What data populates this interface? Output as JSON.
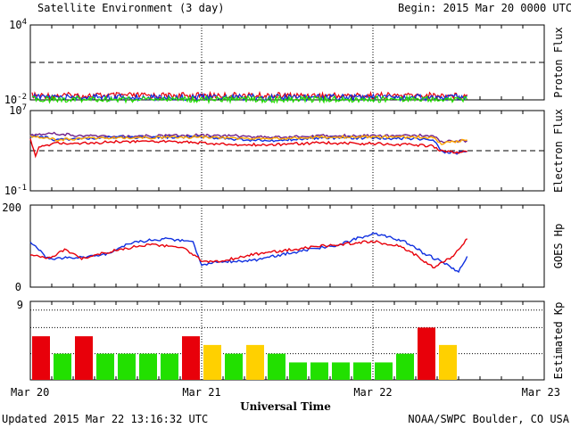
{
  "header": {
    "title": "Satellite Environment (3 day)",
    "begin": "Begin:  2015 Mar 20 0000 UTC"
  },
  "footer": {
    "updated": "Updated 2015 Mar 22 13:16:32 UTC",
    "credit": "NOAA/SWPC Boulder, CO USA"
  },
  "xaxis": {
    "label": "Universal Time",
    "ticks": [
      "Mar 20",
      "Mar 21",
      "Mar 22",
      "Mar 23"
    ],
    "domain_days": [
      0,
      3
    ],
    "data_end_day": 2.55
  },
  "colors": {
    "red": "#e8000a",
    "blue": "#1030e0",
    "green": "#22e000",
    "orange": "#ffa500",
    "purple": "#70208a",
    "yellow": "#ffd000"
  },
  "chart_data": [
    {
      "type": "line",
      "panel": "proton",
      "ylabel": "Proton Flux",
      "yscale": "log",
      "ylim": [
        0.01,
        10000
      ],
      "ytick_labels": [
        {
          "base": "10",
          "exp": "4"
        },
        {
          "base": "10",
          "exp": "-2"
        }
      ],
      "threshold": 10,
      "series": [
        {
          "color": "#e8000a",
          "level": 0.022
        },
        {
          "color": "#1030e0",
          "level": 0.016
        },
        {
          "color": "#22e000",
          "level": 0.011
        }
      ]
    },
    {
      "type": "line",
      "panel": "electron",
      "ylabel": "Electron Flux",
      "yscale": "log",
      "ylim": [
        0.1,
        10000000
      ],
      "ytick_labels": [
        {
          "base": "10",
          "exp": "7"
        },
        {
          "base": "10",
          "exp": "-1"
        }
      ],
      "threshold": 1000,
      "series": [
        {
          "color": "#70208a",
          "points": [
            [
              0,
              40000
            ],
            [
              0.15,
              50000
            ],
            [
              0.3,
              30000
            ],
            [
              0.5,
              28000
            ],
            [
              0.8,
              30000
            ],
            [
              1.0,
              35000
            ],
            [
              1.2,
              30000
            ],
            [
              1.4,
              22000
            ],
            [
              1.7,
              30000
            ],
            [
              2.0,
              32000
            ],
            [
              2.2,
              30000
            ],
            [
              2.35,
              35000
            ],
            [
              2.4,
              8000
            ],
            [
              2.55,
              10000
            ]
          ]
        },
        {
          "color": "#1030e0",
          "points": [
            [
              0,
              25000
            ],
            [
              0.05,
              30000
            ],
            [
              0.15,
              12000
            ],
            [
              0.3,
              16000
            ],
            [
              0.5,
              22000
            ],
            [
              0.8,
              22000
            ],
            [
              1.0,
              25000
            ],
            [
              1.2,
              14000
            ],
            [
              1.4,
              10000
            ],
            [
              1.7,
              20000
            ],
            [
              2.0,
              18000
            ],
            [
              2.2,
              16000
            ],
            [
              2.35,
              14000
            ],
            [
              2.4,
              800
            ],
            [
              2.5,
              600
            ],
            [
              2.55,
              900
            ]
          ]
        },
        {
          "color": "#ffa500",
          "points": [
            [
              0,
              30000
            ],
            [
              0.15,
              12000
            ],
            [
              0.3,
              17000
            ],
            [
              0.5,
              20000
            ],
            [
              0.8,
              20000
            ],
            [
              1.0,
              24000
            ],
            [
              1.2,
              18000
            ],
            [
              1.4,
              16000
            ],
            [
              1.7,
              22000
            ],
            [
              2.0,
              25000
            ],
            [
              2.2,
              22000
            ],
            [
              2.35,
              22000
            ],
            [
              2.4,
              5000
            ],
            [
              2.45,
              7000
            ],
            [
              2.55,
              12000
            ]
          ]
        },
        {
          "color": "#e8000a",
          "points": [
            [
              0,
              15000
            ],
            [
              0.03,
              300
            ],
            [
              0.05,
              2000
            ],
            [
              0.15,
              6000
            ],
            [
              0.3,
              5000
            ],
            [
              0.5,
              8000
            ],
            [
              0.8,
              9000
            ],
            [
              1.0,
              6000
            ],
            [
              1.2,
              4000
            ],
            [
              1.4,
              4000
            ],
            [
              1.7,
              6000
            ],
            [
              2.0,
              5000
            ],
            [
              2.2,
              4000
            ],
            [
              2.35,
              3000
            ],
            [
              2.4,
              900
            ],
            [
              2.5,
              600
            ],
            [
              2.55,
              800
            ]
          ]
        }
      ]
    },
    {
      "type": "line",
      "panel": "goes_hp",
      "ylabel": "GOES Hp",
      "ylim": [
        0,
        200
      ],
      "yticks": [
        "200",
        "0"
      ],
      "series": [
        {
          "color": "#1030e0",
          "points": [
            [
              0,
              110
            ],
            [
              0.1,
              70
            ],
            [
              0.3,
              72
            ],
            [
              0.45,
              82
            ],
            [
              0.6,
              110
            ],
            [
              0.8,
              118
            ],
            [
              0.95,
              110
            ],
            [
              1.0,
              55
            ],
            [
              1.1,
              62
            ],
            [
              1.3,
              65
            ],
            [
              1.5,
              82
            ],
            [
              1.7,
              97
            ],
            [
              1.8,
              103
            ],
            [
              1.9,
              118
            ],
            [
              2.0,
              130
            ],
            [
              2.1,
              122
            ],
            [
              2.2,
              108
            ],
            [
              2.3,
              82
            ],
            [
              2.4,
              62
            ],
            [
              2.5,
              38
            ],
            [
              2.55,
              75
            ]
          ]
        },
        {
          "color": "#e8000a",
          "points": [
            [
              0,
              80
            ],
            [
              0.1,
              68
            ],
            [
              0.2,
              92
            ],
            [
              0.3,
              70
            ],
            [
              0.5,
              90
            ],
            [
              0.7,
              105
            ],
            [
              0.9,
              95
            ],
            [
              1.0,
              65
            ],
            [
              1.1,
              62
            ],
            [
              1.3,
              80
            ],
            [
              1.5,
              90
            ],
            [
              1.7,
              100
            ],
            [
              1.9,
              108
            ],
            [
              2.0,
              112
            ],
            [
              2.15,
              100
            ],
            [
              2.25,
              78
            ],
            [
              2.35,
              48
            ],
            [
              2.45,
              70
            ],
            [
              2.5,
              90
            ],
            [
              2.55,
              118
            ]
          ]
        }
      ]
    },
    {
      "type": "bar",
      "panel": "kp",
      "ylabel": "Estimated Kp",
      "ylim": [
        0,
        9
      ],
      "yticks": [
        "9"
      ],
      "gridlines": [
        3,
        6,
        8,
        9
      ],
      "bar_width_hours": 3,
      "values": [
        5,
        3,
        5,
        3,
        3,
        3,
        3,
        5,
        4,
        3,
        4,
        3,
        2,
        2,
        2,
        2,
        2,
        3,
        6,
        4
      ],
      "colors": [
        "#e8000a",
        "#22e000",
        "#e8000a",
        "#22e000",
        "#22e000",
        "#22e000",
        "#22e000",
        "#e8000a",
        "#ffd000",
        "#22e000",
        "#ffd000",
        "#22e000",
        "#22e000",
        "#22e000",
        "#22e000",
        "#22e000",
        "#22e000",
        "#22e000",
        "#e8000a",
        "#ffd000"
      ]
    }
  ]
}
